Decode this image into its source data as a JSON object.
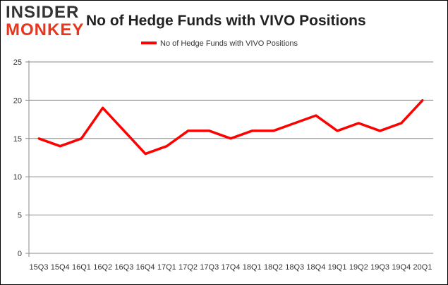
{
  "logo": {
    "line1": "INSIDER",
    "line2": "MONKEY"
  },
  "chart_data": {
    "type": "line",
    "title": "No of Hedge Funds with VIVO Positions",
    "categories": [
      "15Q3",
      "15Q4",
      "16Q1",
      "16Q2",
      "16Q3",
      "16Q4",
      "17Q1",
      "17Q2",
      "17Q3",
      "17Q4",
      "18Q1",
      "18Q2",
      "18Q3",
      "18Q4",
      "19Q1",
      "19Q2",
      "19Q3",
      "19Q4",
      "20Q1"
    ],
    "series": [
      {
        "name": "No of Hedge Funds with VIVO Positions",
        "values": [
          15,
          14,
          15,
          19,
          16,
          13,
          14,
          16,
          16,
          15,
          16,
          16,
          17,
          18,
          16,
          17,
          16,
          17,
          20
        ]
      }
    ],
    "ylim": [
      0,
      25
    ],
    "yticks": [
      0,
      5,
      10,
      15,
      20,
      25
    ],
    "grid": true,
    "legend": "top-center",
    "colors": {
      "line": "#ff0000",
      "grid": "#888888",
      "logo_dark": "#333333",
      "logo_red": "#e8351e"
    }
  }
}
